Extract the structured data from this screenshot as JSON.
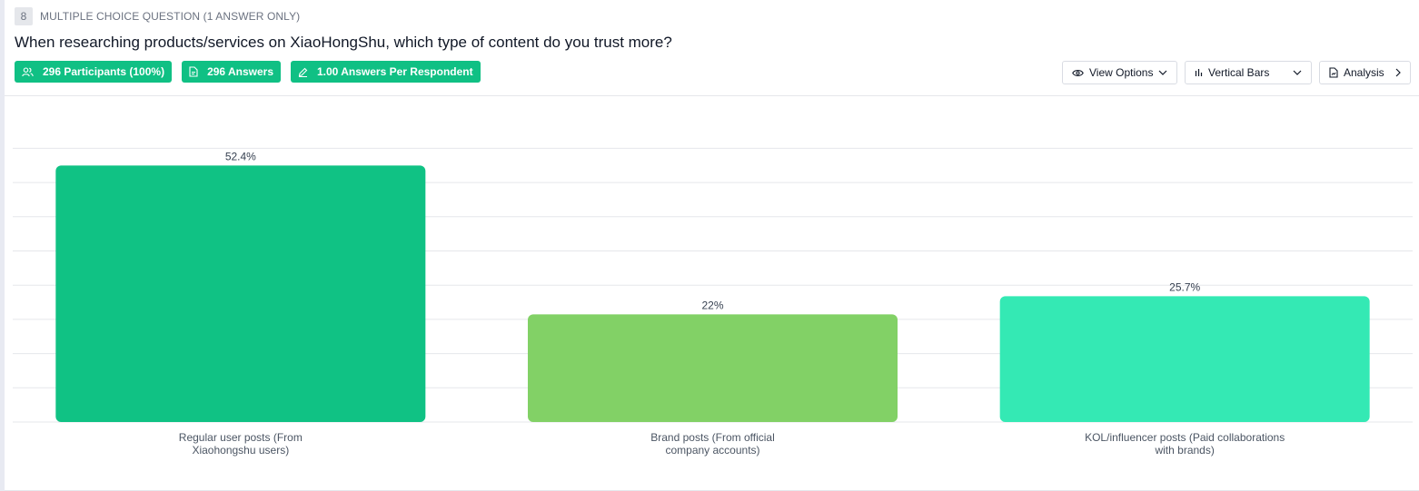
{
  "question": {
    "number": "8",
    "type_label": "MULTIPLE CHOICE QUESTION (1 ANSWER ONLY)",
    "title": "When researching products/services on XiaoHongShu, which type of content do you trust more?"
  },
  "badges": [
    {
      "label": "296 Participants (100%)",
      "icon": "participants-icon"
    },
    {
      "label": "296 Answers",
      "icon": "document-icon"
    },
    {
      "label": "1.00 Answers Per Respondent",
      "icon": "pencil-icon"
    }
  ],
  "controls": {
    "view_options": "View Options",
    "chart_type": "Vertical Bars",
    "analysis": "Analysis"
  },
  "colors": {
    "badge": "#10c084",
    "bar1": "#10c284",
    "bar2": "#82d166",
    "bar3": "#34e9b4"
  },
  "chart_data": {
    "type": "bar",
    "categories": [
      "Regular user posts (From Xiaohongshu users)",
      "Brand posts (From official company accounts)",
      "KOL/influencer posts (Paid collaborations with brands)"
    ],
    "category_lines": [
      [
        "Regular user posts (From",
        "Xiaohongshu users)"
      ],
      [
        "Brand posts (From official",
        "company accounts)"
      ],
      [
        "KOL/influencer posts (Paid collaborations",
        "with brands)"
      ]
    ],
    "values": [
      52.4,
      22,
      25.7
    ],
    "value_labels": [
      "52.4%",
      "22%",
      "25.7%"
    ],
    "bar_colors": [
      "#10c284",
      "#82d166",
      "#34e9b4"
    ],
    "ylim": [
      0,
      56
    ],
    "grid": true,
    "title": "",
    "xlabel": "",
    "ylabel": ""
  }
}
